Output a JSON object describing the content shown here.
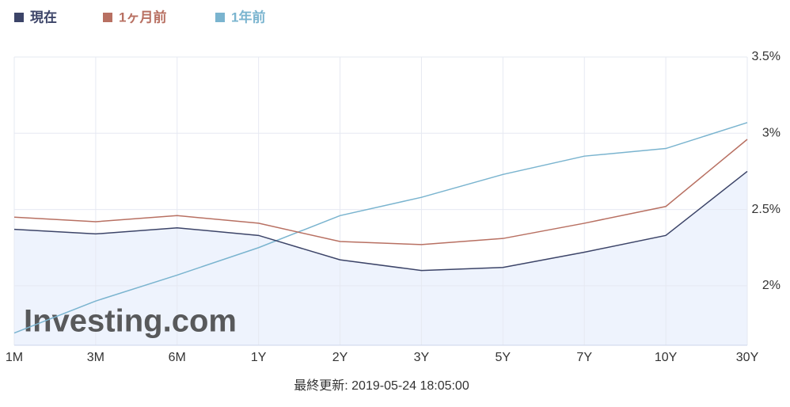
{
  "chart_data": {
    "type": "line",
    "legend": "top-left",
    "watermark": "Investing.com",
    "footer": "最終更新: 2019-05-24 18:05:00",
    "categories": [
      "1M",
      "3M",
      "6M",
      "1Y",
      "2Y",
      "3Y",
      "5Y",
      "7Y",
      "10Y",
      "30Y"
    ],
    "series": [
      {
        "name": "現在",
        "color": "#3c4468",
        "area_color": "#eef3fd",
        "values": [
          2.37,
          2.34,
          2.38,
          2.33,
          2.17,
          2.1,
          2.12,
          2.22,
          2.33,
          2.75
        ]
      },
      {
        "name": "1ヶ月前",
        "color": "#b87062",
        "values": [
          2.45,
          2.42,
          2.46,
          2.41,
          2.29,
          2.27,
          2.31,
          2.41,
          2.52,
          2.96
        ]
      },
      {
        "name": "1年前",
        "color": "#7ab4cf",
        "values": [
          1.69,
          1.9,
          2.07,
          2.25,
          2.46,
          2.58,
          2.73,
          2.85,
          2.9,
          3.07
        ]
      }
    ],
    "ylim": [
      1.61,
      3.5
    ],
    "yticks": [
      {
        "value": 2,
        "label": "2%"
      },
      {
        "value": 2.5,
        "label": "2.5%"
      },
      {
        "value": 3,
        "label": "3%"
      },
      {
        "value": 3.5,
        "label": "3.5%"
      }
    ],
    "grid": true
  }
}
